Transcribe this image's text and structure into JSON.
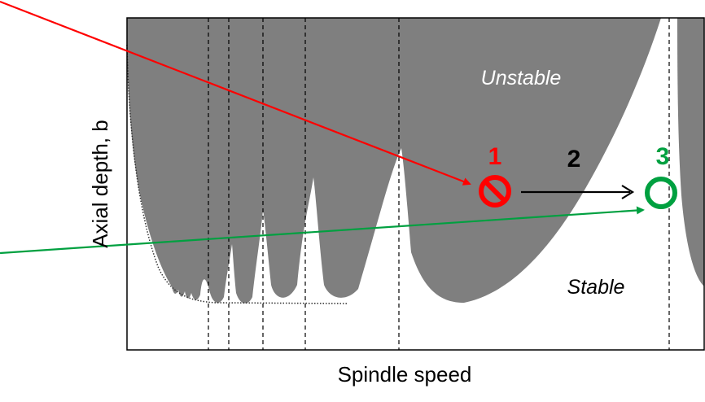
{
  "axes": {
    "xlabel": "Spindle speed",
    "ylabel": "Axial depth, b"
  },
  "regions": {
    "unstable": "Unstable",
    "stable": "Stable"
  },
  "steps": [
    {
      "label": "1",
      "color": "#ff0000",
      "marker": "prohibited-icon"
    },
    {
      "label": "2",
      "color": "#000000",
      "marker": "right-arrow"
    },
    {
      "label": "3",
      "color": "#00a040",
      "marker": "circle-icon"
    }
  ],
  "colors": {
    "unstable_fill": "#7f7f7f",
    "stable_fill": "#ffffff",
    "step1": "#ff0000",
    "step3": "#00a040",
    "guide_lines": "#000000"
  }
}
